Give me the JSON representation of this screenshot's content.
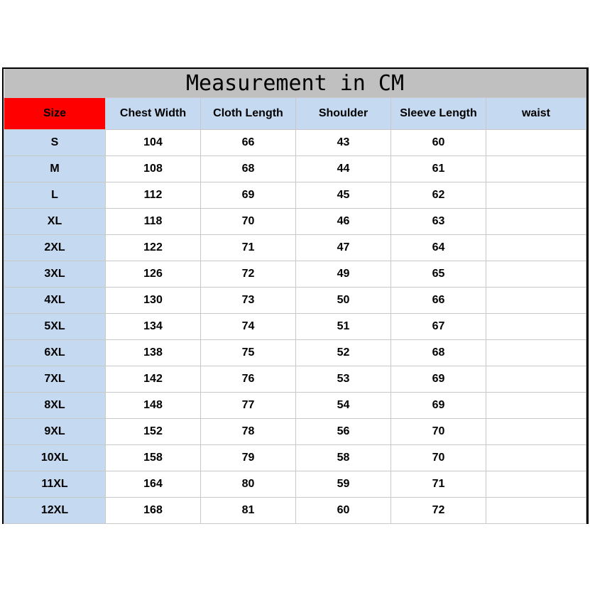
{
  "title": "Measurement in CM",
  "headers": [
    "Size",
    "Chest Width",
    "Cloth Length",
    "Shoulder",
    "Sleeve Length",
    "waist"
  ],
  "colors": {
    "size_header": "#ff0000",
    "header_bg": "#c5d9f1",
    "title_bg": "#c0c0c0"
  },
  "rows": [
    [
      "S",
      "104",
      "66",
      "43",
      "60",
      ""
    ],
    [
      "M",
      "108",
      "68",
      "44",
      "61",
      ""
    ],
    [
      "L",
      "112",
      "69",
      "45",
      "62",
      ""
    ],
    [
      "XL",
      "118",
      "70",
      "46",
      "63",
      ""
    ],
    [
      "2XL",
      "122",
      "71",
      "47",
      "64",
      ""
    ],
    [
      "3XL",
      "126",
      "72",
      "49",
      "65",
      ""
    ],
    [
      "4XL",
      "130",
      "73",
      "50",
      "66",
      ""
    ],
    [
      "5XL",
      "134",
      "74",
      "51",
      "67",
      ""
    ],
    [
      "6XL",
      "138",
      "75",
      "52",
      "68",
      ""
    ],
    [
      "7XL",
      "142",
      "76",
      "53",
      "69",
      ""
    ],
    [
      "8XL",
      "148",
      "77",
      "54",
      "69",
      ""
    ],
    [
      "9XL",
      "152",
      "78",
      "56",
      "70",
      ""
    ],
    [
      "10XL",
      "158",
      "79",
      "58",
      "70",
      ""
    ],
    [
      "11XL",
      "164",
      "80",
      "59",
      "71",
      ""
    ],
    [
      "12XL",
      "168",
      "81",
      "60",
      "72",
      ""
    ]
  ]
}
